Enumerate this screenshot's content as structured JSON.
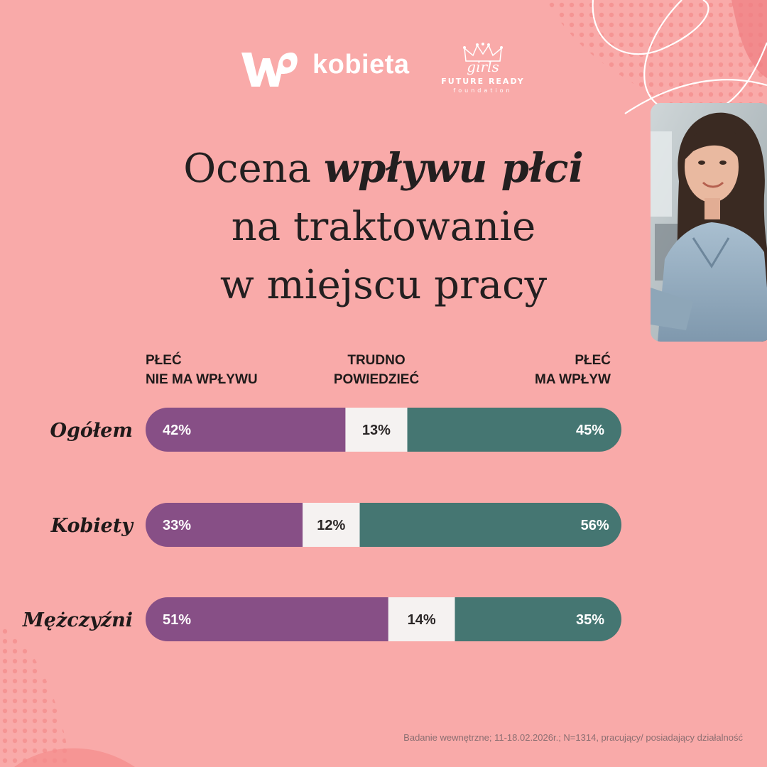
{
  "brand": {
    "wp_text": "kobieta",
    "partner_top": "girls",
    "partner_middle": "FUTURE READY",
    "partner_bottom": "foundation"
  },
  "title": {
    "part1": "Ocena ",
    "emphasis": "wpływu płci",
    "line2": "na traktowanie",
    "line3": "w miejscu pracy"
  },
  "columns": {
    "left": [
      "PŁEĆ",
      "NIE MA WPŁYWU"
    ],
    "middle": [
      "TRUDNO",
      "POWIEDZIEĆ"
    ],
    "right": [
      "PŁEĆ",
      "MA WPŁYW"
    ]
  },
  "chart_data": {
    "type": "bar",
    "orientation": "horizontal",
    "stacked": true,
    "categories": [
      "Ogółem",
      "Kobiety",
      "Mężczyźni"
    ],
    "series": [
      {
        "name": "PŁEĆ NIE MA WPŁYWU",
        "values": [
          42,
          33,
          51
        ],
        "labels": [
          "42%",
          "33%",
          "51%"
        ],
        "color": "#874f86",
        "text_color": "#ffffff"
      },
      {
        "name": "TRUDNO POWIEDZIEĆ",
        "values": [
          13,
          12,
          14
        ],
        "labels": [
          "13%",
          "12%",
          "14%"
        ],
        "color": "#f5f2f1",
        "text_color": "#2a2626"
      },
      {
        "name": "PŁEĆ MA WPŁYW",
        "values": [
          45,
          56,
          35
        ],
        "labels": [
          "45%",
          "56%",
          "35%"
        ],
        "color": "#457672",
        "text_color": "#ffffff"
      }
    ],
    "xlim": [
      0,
      100
    ]
  },
  "footer": "Badanie wewnętrzne; 11-18.02.2026r.; N=1314, pracujący/ posiadający działalność"
}
